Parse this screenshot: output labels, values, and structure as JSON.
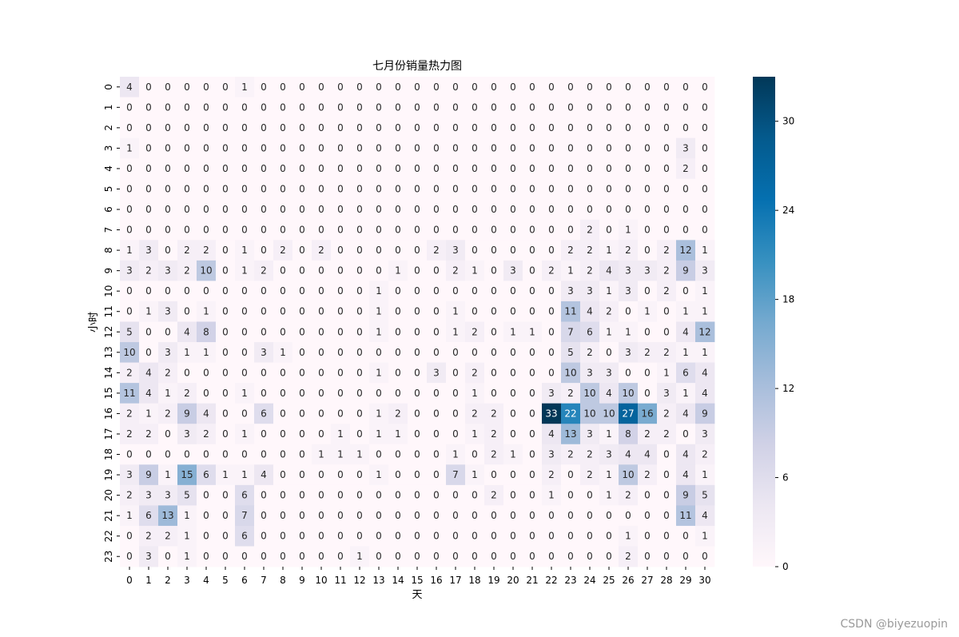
{
  "chart_data": {
    "type": "heatmap",
    "title": "七月份销量热力图",
    "xlabel": "天",
    "ylabel": "小时",
    "x_categories": [
      "0",
      "1",
      "2",
      "3",
      "4",
      "5",
      "6",
      "7",
      "8",
      "9",
      "10",
      "11",
      "12",
      "13",
      "14",
      "15",
      "16",
      "17",
      "18",
      "19",
      "20",
      "21",
      "22",
      "23",
      "24",
      "25",
      "26",
      "27",
      "28",
      "29",
      "30"
    ],
    "y_categories": [
      "0",
      "1",
      "2",
      "3",
      "4",
      "5",
      "6",
      "7",
      "8",
      "9",
      "10",
      "11",
      "12",
      "13",
      "14",
      "15",
      "16",
      "17",
      "18",
      "19",
      "20",
      "21",
      "22",
      "23"
    ],
    "values": [
      [
        4,
        0,
        0,
        0,
        0,
        0,
        1,
        0,
        0,
        0,
        0,
        0,
        0,
        0,
        0,
        0,
        0,
        0,
        0,
        0,
        0,
        0,
        0,
        0,
        0,
        0,
        0,
        0,
        0,
        0,
        0
      ],
      [
        0,
        0,
        0,
        0,
        0,
        0,
        0,
        0,
        0,
        0,
        0,
        0,
        0,
        0,
        0,
        0,
        0,
        0,
        0,
        0,
        0,
        0,
        0,
        0,
        0,
        0,
        0,
        0,
        0,
        0,
        0
      ],
      [
        0,
        0,
        0,
        0,
        0,
        0,
        0,
        0,
        0,
        0,
        0,
        0,
        0,
        0,
        0,
        0,
        0,
        0,
        0,
        0,
        0,
        0,
        0,
        0,
        0,
        0,
        0,
        0,
        0,
        0,
        0
      ],
      [
        1,
        0,
        0,
        0,
        0,
        0,
        0,
        0,
        0,
        0,
        0,
        0,
        0,
        0,
        0,
        0,
        0,
        0,
        0,
        0,
        0,
        0,
        0,
        0,
        0,
        0,
        0,
        0,
        0,
        3,
        0
      ],
      [
        0,
        0,
        0,
        0,
        0,
        0,
        0,
        0,
        0,
        0,
        0,
        0,
        0,
        0,
        0,
        0,
        0,
        0,
        0,
        0,
        0,
        0,
        0,
        0,
        0,
        0,
        0,
        0,
        0,
        2,
        0
      ],
      [
        0,
        0,
        0,
        0,
        0,
        0,
        0,
        0,
        0,
        0,
        0,
        0,
        0,
        0,
        0,
        0,
        0,
        0,
        0,
        0,
        0,
        0,
        0,
        0,
        0,
        0,
        0,
        0,
        0,
        0,
        0
      ],
      [
        0,
        0,
        0,
        0,
        0,
        0,
        0,
        0,
        0,
        0,
        0,
        0,
        0,
        0,
        0,
        0,
        0,
        0,
        0,
        0,
        0,
        0,
        0,
        0,
        0,
        0,
        0,
        0,
        0,
        0,
        0
      ],
      [
        0,
        0,
        0,
        0,
        0,
        0,
        0,
        0,
        0,
        0,
        0,
        0,
        0,
        0,
        0,
        0,
        0,
        0,
        0,
        0,
        0,
        0,
        0,
        0,
        2,
        0,
        1,
        0,
        0,
        0,
        0
      ],
      [
        1,
        3,
        0,
        2,
        2,
        0,
        1,
        0,
        2,
        0,
        2,
        0,
        0,
        0,
        0,
        0,
        2,
        3,
        0,
        0,
        0,
        0,
        0,
        2,
        2,
        1,
        2,
        0,
        2,
        12,
        1
      ],
      [
        3,
        2,
        3,
        2,
        10,
        0,
        1,
        2,
        0,
        0,
        0,
        0,
        0,
        0,
        1,
        0,
        0,
        2,
        1,
        0,
        3,
        0,
        2,
        1,
        2,
        4,
        3,
        3,
        2,
        9,
        3
      ],
      [
        0,
        0,
        0,
        0,
        0,
        0,
        0,
        0,
        0,
        0,
        0,
        0,
        0,
        1,
        0,
        0,
        0,
        0,
        0,
        0,
        0,
        0,
        0,
        3,
        3,
        1,
        3,
        0,
        2,
        0,
        1
      ],
      [
        0,
        1,
        3,
        0,
        1,
        0,
        0,
        0,
        0,
        0,
        0,
        0,
        0,
        1,
        0,
        0,
        0,
        1,
        0,
        0,
        0,
        0,
        0,
        11,
        4,
        2,
        0,
        1,
        0,
        1,
        1
      ],
      [
        5,
        0,
        0,
        4,
        8,
        0,
        0,
        0,
        0,
        0,
        0,
        0,
        0,
        1,
        0,
        0,
        0,
        1,
        2,
        0,
        1,
        1,
        0,
        7,
        6,
        1,
        1,
        0,
        0,
        4,
        12
      ],
      [
        10,
        0,
        3,
        1,
        1,
        0,
        0,
        3,
        1,
        0,
        0,
        0,
        0,
        0,
        0,
        0,
        0,
        0,
        0,
        0,
        0,
        0,
        0,
        5,
        2,
        0,
        3,
        2,
        2,
        1,
        1
      ],
      [
        2,
        4,
        2,
        0,
        0,
        0,
        0,
        0,
        0,
        0,
        0,
        0,
        0,
        1,
        0,
        0,
        3,
        0,
        2,
        0,
        0,
        0,
        0,
        10,
        3,
        3,
        0,
        0,
        1,
        6,
        4
      ],
      [
        11,
        4,
        1,
        2,
        0,
        0,
        1,
        0,
        0,
        0,
        0,
        0,
        0,
        0,
        0,
        0,
        0,
        0,
        1,
        0,
        0,
        0,
        3,
        2,
        10,
        4,
        10,
        0,
        3,
        1,
        4
      ],
      [
        2,
        1,
        2,
        9,
        4,
        0,
        0,
        6,
        0,
        0,
        0,
        0,
        0,
        1,
        2,
        0,
        0,
        0,
        2,
        2,
        0,
        0,
        33,
        22,
        10,
        10,
        27,
        16,
        2,
        4,
        9
      ],
      [
        2,
        2,
        0,
        3,
        2,
        0,
        1,
        0,
        0,
        0,
        0,
        1,
        0,
        1,
        1,
        0,
        0,
        0,
        1,
        2,
        0,
        0,
        4,
        13,
        3,
        1,
        8,
        2,
        2,
        0,
        3
      ],
      [
        0,
        0,
        0,
        0,
        0,
        0,
        0,
        0,
        0,
        0,
        1,
        1,
        1,
        0,
        0,
        0,
        0,
        1,
        0,
        2,
        1,
        0,
        3,
        2,
        2,
        3,
        4,
        4,
        0,
        4,
        2
      ],
      [
        3,
        9,
        1,
        15,
        6,
        1,
        1,
        4,
        0,
        0,
        0,
        0,
        0,
        1,
        0,
        0,
        0,
        7,
        1,
        0,
        0,
        0,
        2,
        0,
        2,
        1,
        10,
        2,
        0,
        4,
        1
      ],
      [
        2,
        3,
        3,
        5,
        0,
        0,
        6,
        0,
        0,
        0,
        0,
        0,
        0,
        0,
        0,
        0,
        0,
        0,
        0,
        2,
        0,
        0,
        1,
        0,
        0,
        1,
        2,
        0,
        0,
        9,
        5
      ],
      [
        1,
        6,
        13,
        1,
        0,
        0,
        7,
        0,
        0,
        0,
        0,
        0,
        0,
        0,
        0,
        0,
        0,
        0,
        0,
        0,
        0,
        0,
        0,
        0,
        0,
        0,
        0,
        0,
        0,
        11,
        4
      ],
      [
        0,
        2,
        2,
        1,
        0,
        0,
        6,
        0,
        0,
        0,
        0,
        0,
        0,
        0,
        0,
        0,
        0,
        0,
        0,
        0,
        0,
        0,
        0,
        0,
        0,
        0,
        1,
        0,
        0,
        0,
        1
      ],
      [
        0,
        3,
        0,
        1,
        0,
        0,
        0,
        0,
        0,
        0,
        0,
        0,
        1,
        0,
        0,
        0,
        0,
        0,
        0,
        0,
        0,
        0,
        0,
        0,
        0,
        0,
        2,
        0,
        0,
        0,
        0
      ]
    ],
    "colormap": "PuBu",
    "vmin": 0,
    "vmax": 33,
    "colorbar_ticks": [
      0,
      6,
      12,
      18,
      24,
      30
    ]
  },
  "watermark": "CSDN @biyezuopin"
}
